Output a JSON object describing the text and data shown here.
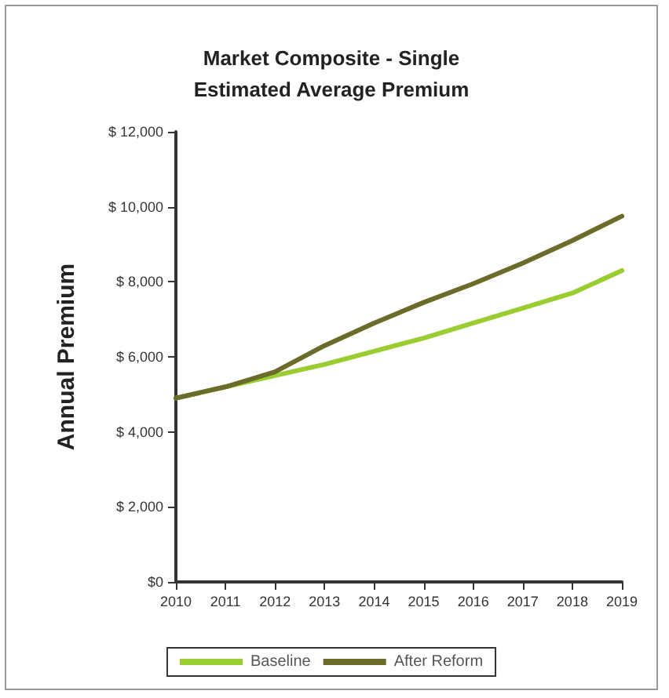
{
  "chart_data": {
    "type": "line",
    "title": "Market Composite - Single\nEstimated Average Premium",
    "ylabel": "Annual Premium",
    "categories": [
      "2010",
      "2011",
      "2012",
      "2013",
      "2014",
      "2015",
      "2016",
      "2017",
      "2018",
      "2019"
    ],
    "series": [
      {
        "name": "Baseline",
        "color": "#9acd32",
        "values": [
          4900,
          5200,
          5500,
          5800,
          6150,
          6500,
          6900,
          7300,
          7700,
          8300
        ]
      },
      {
        "name": "After Reform",
        "color": "#6b6b2a",
        "values": [
          4900,
          5200,
          5600,
          6300,
          6900,
          7450,
          7950,
          8500,
          9100,
          9750
        ]
      }
    ],
    "ylim": [
      0,
      12000
    ],
    "yticks": [
      {
        "value": 0,
        "label": "$0"
      },
      {
        "value": 2000,
        "label": "$ 2,000"
      },
      {
        "value": 4000,
        "label": "$ 4,000"
      },
      {
        "value": 6000,
        "label": "$ 6,000"
      },
      {
        "value": 8000,
        "label": "$ 8,000"
      },
      {
        "value": 10000,
        "label": "$ 10,000"
      },
      {
        "value": 12000,
        "label": "$ 12,000"
      }
    ],
    "grid": false,
    "legend": "bottom",
    "marker": "none",
    "line_style": "solid"
  }
}
